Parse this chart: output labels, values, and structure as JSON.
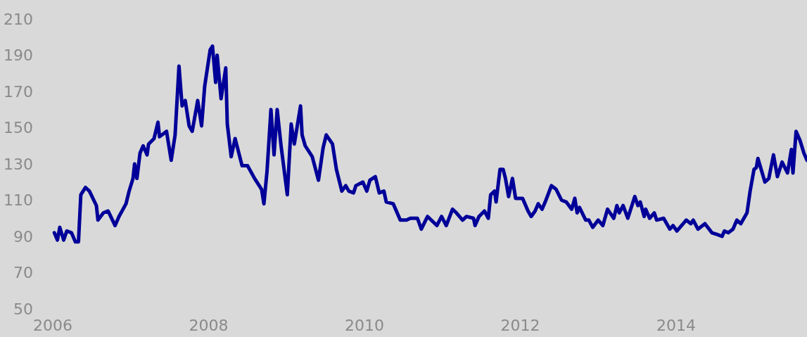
{
  "chart_data": {
    "type": "line",
    "x": [
      2006.02,
      2006.06,
      2006.09,
      2006.14,
      2006.18,
      2006.24,
      2006.29,
      2006.33,
      2006.36,
      2006.42,
      2006.47,
      2006.56,
      2006.58,
      2006.65,
      2006.71,
      2006.8,
      2006.85,
      2006.94,
      2006.98,
      2007.03,
      2007.05,
      2007.08,
      2007.12,
      2007.16,
      2007.21,
      2007.23,
      2007.3,
      2007.35,
      2007.37,
      2007.46,
      2007.52,
      2007.57,
      2007.62,
      2007.66,
      2007.7,
      2007.75,
      2007.79,
      2007.86,
      2007.91,
      2007.95,
      2008.02,
      2008.05,
      2008.09,
      2008.11,
      2008.16,
      2008.22,
      2008.24,
      2008.29,
      2008.34,
      2008.43,
      2008.5,
      2008.59,
      2008.68,
      2008.71,
      2008.75,
      2008.8,
      2008.84,
      2008.88,
      2008.93,
      2009.01,
      2009.06,
      2009.1,
      2009.18,
      2009.2,
      2009.24,
      2009.33,
      2009.41,
      2009.47,
      2009.51,
      2009.59,
      2009.64,
      2009.71,
      2009.76,
      2009.8,
      2009.86,
      2009.89,
      2009.98,
      2010.03,
      2010.07,
      2010.14,
      2010.19,
      2010.25,
      2010.28,
      2010.37,
      2010.46,
      2010.54,
      2010.59,
      2010.68,
      2010.73,
      2010.81,
      2010.93,
      2010.99,
      2011.05,
      2011.13,
      2011.18,
      2011.26,
      2011.31,
      2011.4,
      2011.42,
      2011.47,
      2011.54,
      2011.59,
      2011.62,
      2011.67,
      2011.69,
      2011.74,
      2011.78,
      2011.81,
      2011.85,
      2011.9,
      2011.94,
      2012.03,
      2012.1,
      2012.14,
      2012.19,
      2012.23,
      2012.28,
      2012.32,
      2012.4,
      2012.46,
      2012.53,
      2012.59,
      2012.66,
      2012.7,
      2012.73,
      2012.76,
      2012.84,
      2012.88,
      2012.93,
      2013.0,
      2013.06,
      2013.12,
      2013.2,
      2013.24,
      2013.27,
      2013.32,
      2013.38,
      2013.47,
      2013.51,
      2013.54,
      2013.59,
      2013.61,
      2013.66,
      2013.72,
      2013.75,
      2013.84,
      2013.92,
      2013.96,
      2014.01,
      2014.05,
      2014.13,
      2014.19,
      2014.22,
      2014.28,
      2014.37,
      2014.46,
      2014.53,
      2014.59,
      2014.62,
      2014.67,
      2014.73,
      2014.78,
      2014.83,
      2014.91,
      2014.95,
      2015.0,
      2015.03,
      2015.05,
      2015.14,
      2015.19,
      2015.25,
      2015.3,
      2015.36,
      2015.43,
      2015.48,
      2015.5,
      2015.54,
      2015.59,
      2015.64,
      2015.68
    ],
    "series": [
      {
        "color": "#000099",
        "values": [
          92,
          88,
          95,
          88,
          93,
          92,
          87,
          87,
          113,
          117,
          115,
          107,
          99,
          103,
          104,
          96,
          101,
          108,
          115,
          122,
          130,
          122,
          136,
          140,
          135,
          141,
          144,
          153,
          145,
          148,
          132,
          146,
          184,
          162,
          165,
          151,
          148,
          165,
          151,
          173,
          193,
          195,
          175,
          190,
          166,
          183,
          152,
          134,
          144,
          129,
          129,
          122,
          116,
          108,
          126,
          160,
          135,
          160,
          140,
          113,
          152,
          141,
          162,
          146,
          140,
          134,
          121,
          139,
          146,
          141,
          127,
          115,
          118,
          115,
          114,
          118,
          120,
          115,
          121,
          123,
          114,
          115,
          109,
          108,
          99,
          99,
          100,
          100,
          94,
          101,
          96,
          101,
          96,
          105,
          103,
          99,
          101,
          100,
          96,
          101,
          104,
          100,
          113,
          115,
          109,
          127,
          127,
          122,
          112,
          122,
          111,
          111,
          104,
          101,
          104,
          108,
          105,
          109,
          118,
          116,
          110,
          109,
          105,
          111,
          103,
          106,
          99,
          99,
          95,
          99,
          96,
          105,
          100,
          107,
          103,
          107,
          100,
          112,
          107,
          109,
          101,
          105,
          100,
          103,
          99,
          100,
          94,
          96,
          93,
          95,
          99,
          97,
          99,
          94,
          97,
          92,
          91,
          90,
          93,
          92,
          94,
          99,
          97,
          103,
          115,
          127,
          128,
          133,
          120,
          122,
          135,
          123,
          131,
          125,
          138,
          125,
          148,
          143,
          136,
          132
        ]
      }
    ],
    "xlim": [
      2006,
      2015.68
    ],
    "xticks": [
      2006,
      2008,
      2010,
      2012,
      2014
    ],
    "ylim": [
      50,
      210
    ],
    "yticks": [
      50,
      70,
      90,
      110,
      130,
      150,
      170,
      190,
      210
    ],
    "grid": false,
    "marker": "none",
    "line_style": "solid"
  }
}
